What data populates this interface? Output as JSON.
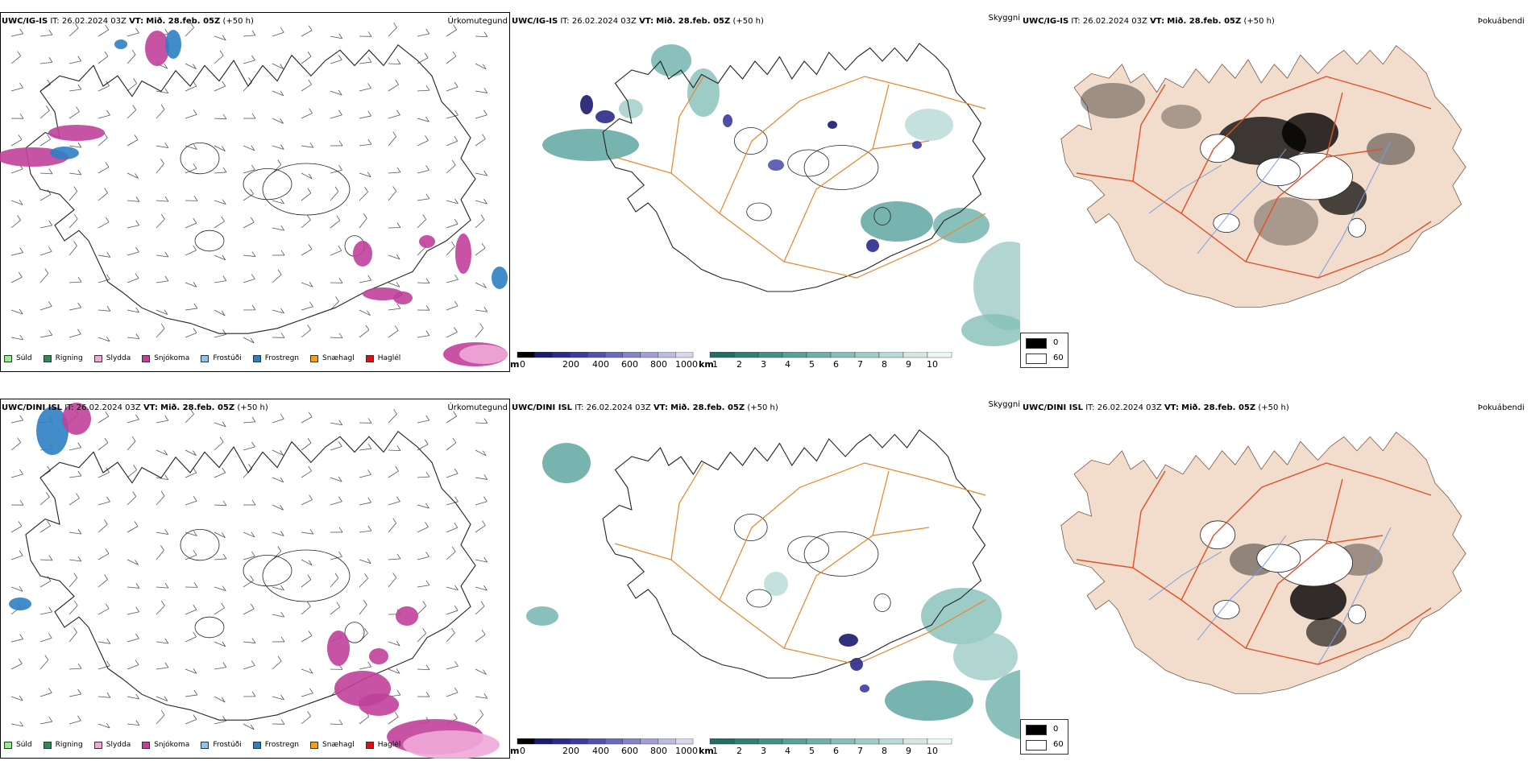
{
  "rows": [
    {
      "model": "UWC/IG-IS",
      "it_label": "IT:",
      "it_value": "26.02.2024 03Z",
      "vt_label": "VT:",
      "vt_value": "Mið. 28.feb. 05Z",
      "offset": "(+50 h)",
      "panel1_title": "Úrkomutegund",
      "panel2_title": "Skyggni",
      "panel3_title": "Þokuábendi"
    },
    {
      "model": "UWC/DINI ISL",
      "it_label": "IT:",
      "it_value": "26.02.2024 03Z",
      "vt_label": "VT:",
      "vt_value": "Mið. 28.feb. 05Z",
      "offset": "(+50 h)",
      "panel1_title": "Úrkomutegund",
      "panel2_title": "Skyggni",
      "panel3_title": "Þokuábendi"
    }
  ],
  "precip_legend": [
    {
      "label": "Súld",
      "color": "#90ee90"
    },
    {
      "label": "Rigning",
      "color": "#2e8b57"
    },
    {
      "label": "Slydda",
      "color": "#f0a8d8"
    },
    {
      "label": "Snjókoma",
      "color": "#c0409a"
    },
    {
      "label": "Frostúði",
      "color": "#87c4f0"
    },
    {
      "label": "Frostregn",
      "color": "#2d7fc4"
    },
    {
      "label": "Snæhagl",
      "color": "#f0a020"
    },
    {
      "label": "Haglél",
      "color": "#e01010"
    }
  ],
  "visibility_scale_m": {
    "unit": "m",
    "ticks": [
      "0",
      "200",
      "400",
      "600",
      "800",
      "1000"
    ],
    "colors": [
      "#000000",
      "#1a1a6e",
      "#2a2a8a",
      "#3b3ba0",
      "#5252b0",
      "#6a6abd",
      "#8484c8",
      "#9f9fd3",
      "#bcbce0",
      "#d6d6ec"
    ]
  },
  "visibility_scale_km": {
    "unit": "km",
    "ticks": [
      "1",
      "2",
      "3",
      "4",
      "5",
      "6",
      "7",
      "8",
      "9",
      "10"
    ],
    "colors": [
      "#1f6e6a",
      "#2f807b",
      "#42908b",
      "#56a19b",
      "#6cb0aa",
      "#84bfb9",
      "#9dccc7",
      "#b7dad6",
      "#d1e8e5",
      "#ecf6f5"
    ]
  },
  "fog_legend": [
    {
      "label": "0",
      "color": "#000000"
    },
    {
      "label": "60",
      "color": "#ffffff"
    }
  ],
  "colors": {
    "road": "#e8862a",
    "road_red": "#e0502a",
    "river": "#7b9be0",
    "land_fog": "#f2dccb",
    "coast": "#000000",
    "wind": "#555555"
  }
}
